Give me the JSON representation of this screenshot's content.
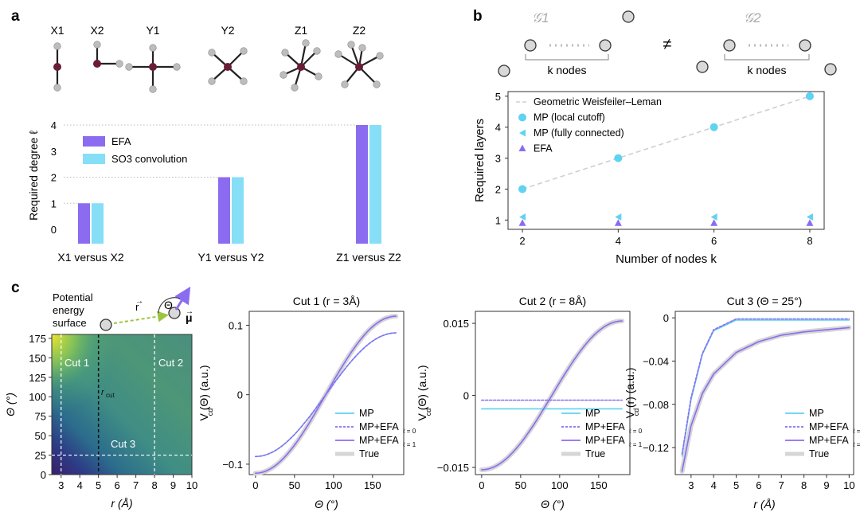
{
  "panel_labels": {
    "a": "a",
    "b": "b",
    "c": "c"
  },
  "colors": {
    "efa": "#8b6cf0",
    "so3": "#86def7",
    "mp": "#5fd3f1",
    "wl": "#cfcfcf",
    "true": "#d6d6d6",
    "node_center": "#6b1d35",
    "node_outer": "#bdbdbd"
  },
  "panel_a": {
    "molecules": [
      {
        "label": "X1",
        "shape": "X1"
      },
      {
        "label": "X2",
        "shape": "X2"
      },
      {
        "label": "Y1",
        "shape": "Y1"
      },
      {
        "label": "Y2",
        "shape": "Y2"
      },
      {
        "label": "Z1",
        "shape": "Z1"
      },
      {
        "label": "Z2",
        "shape": "Z2"
      }
    ]
  },
  "panel_b_schematic": {
    "graph1": "𝒢1",
    "graph2": "𝒢2",
    "neq": "≠",
    "k_nodes": "k nodes"
  },
  "panel_c_schematic": {
    "potential_label": [
      "Potential",
      "energy",
      "surface"
    ],
    "r_vec": "r",
    "mu_vec": "μ",
    "theta_sym": "Θ"
  },
  "chart_data": [
    {
      "id": "a",
      "type": "bar",
      "ylabel": "Required degree ℓ",
      "ylim": [
        0,
        4
      ],
      "yticks": [
        "0",
        "1",
        "2",
        "3",
        "4"
      ],
      "categories": [
        "X1 versus X2",
        "Y1 versus Y2",
        "Z1 versus Z2"
      ],
      "series": [
        {
          "name": "EFA",
          "values": [
            1,
            2,
            4
          ]
        },
        {
          "name": "SO3 convolution",
          "values": [
            1,
            2,
            4
          ]
        }
      ],
      "legend": "top-left"
    },
    {
      "id": "b",
      "type": "scatter",
      "xlabel": "Number of nodes k",
      "ylabel": "Required layers",
      "xlim": [
        1.7,
        8.3
      ],
      "ylim": [
        0.7,
        5.15
      ],
      "xticks": [
        "2",
        "4",
        "6",
        "8"
      ],
      "yticks": [
        "1",
        "2",
        "3",
        "4",
        "5"
      ],
      "x": [
        2,
        4,
        6,
        8
      ],
      "series": [
        {
          "name": "Geometric Weisfeiler–Leman",
          "values": [
            2,
            3,
            4,
            5
          ]
        },
        {
          "name": "MP (local cutoff)",
          "values": [
            2,
            3,
            4,
            5
          ]
        },
        {
          "name": "MP (fully connected)",
          "values": [
            1.1,
            1.1,
            1.1,
            1.1
          ]
        },
        {
          "name": "EFA",
          "values": [
            0.9,
            0.9,
            0.9,
            0.9
          ]
        }
      ],
      "legend": "top-left"
    },
    {
      "id": "c_heatmap",
      "type": "heatmap",
      "xlabel": "r (Å)",
      "ylabel": "Θ (°)",
      "xlim": [
        2.5,
        10
      ],
      "ylim": [
        0,
        180
      ],
      "xticks": [
        "3",
        "4",
        "5",
        "6",
        "7",
        "8",
        "9",
        "10"
      ],
      "yticks": [
        "0",
        "25",
        "50",
        "75",
        "100",
        "125",
        "150",
        "175"
      ],
      "cuts": [
        "Cut 1",
        "Cut 2",
        "Cut 3"
      ],
      "rcut_label": "r",
      "rcut_sub": "cut",
      "rcut": 5,
      "cut_lines": {
        "r": [
          3,
          8
        ],
        "theta": 25
      }
    },
    {
      "id": "c1",
      "type": "line",
      "title": "Cut 1 (r = 3Å)",
      "xlabel": "Θ (°)",
      "ylabel": "V (Θ) (a.u.)",
      "ysub": "cd",
      "xlim": [
        -8,
        190
      ],
      "ylim": [
        -0.115,
        0.12
      ],
      "xticks": [
        "0",
        "50",
        "100",
        "150"
      ],
      "yticks": [
        "0.1",
        "0",
        "−0.1"
      ],
      "x": [
        0,
        30,
        60,
        90,
        120,
        150,
        180
      ],
      "series": [
        {
          "name": "True",
          "values": [
            -0.113,
            -0.098,
            -0.057,
            0.0,
            0.057,
            0.098,
            0.113
          ]
        },
        {
          "name": "MP",
          "values": [
            -0.089,
            -0.077,
            -0.045,
            0.0,
            0.045,
            0.077,
            0.089
          ]
        },
        {
          "name": "MP+EFA",
          "sub": "ℓ = 0",
          "values": [
            -0.089,
            -0.077,
            -0.045,
            0.0,
            0.045,
            0.077,
            0.089
          ]
        },
        {
          "name": "MP+EFA",
          "sub": "ℓ = 1",
          "values": [
            -0.113,
            -0.098,
            -0.057,
            0.0,
            0.057,
            0.098,
            0.113
          ]
        }
      ],
      "legend": "bottom-right"
    },
    {
      "id": "c2",
      "type": "line",
      "title": "Cut 2 (r = 8Å)",
      "xlabel": "Θ (°)",
      "ylabel": "V (Θ) (a.u.)",
      "ysub": "cd",
      "xlim": [
        -8,
        190
      ],
      "ylim": [
        -0.0165,
        0.0175
      ],
      "xticks": [
        "0",
        "50",
        "100",
        "150"
      ],
      "yticks": [
        "0.015",
        "0",
        "−0.015"
      ],
      "x": [
        0,
        30,
        60,
        90,
        120,
        150,
        180
      ],
      "series": [
        {
          "name": "True",
          "values": [
            -0.0155,
            -0.0134,
            -0.0078,
            0.0,
            0.0078,
            0.0134,
            0.0155
          ]
        },
        {
          "name": "MP",
          "values": [
            -0.0028,
            -0.0028,
            -0.0028,
            -0.0028,
            -0.0028,
            -0.0028,
            -0.0028
          ]
        },
        {
          "name": "MP+EFA",
          "sub": "ℓ = 0",
          "values": [
            -0.001,
            -0.001,
            -0.001,
            -0.001,
            -0.001,
            -0.001,
            -0.001
          ]
        },
        {
          "name": "MP+EFA",
          "sub": "ℓ = 1",
          "values": [
            -0.0155,
            -0.0134,
            -0.0078,
            0.0,
            0.0078,
            0.0134,
            0.0155
          ]
        }
      ],
      "legend": "bottom-right"
    },
    {
      "id": "c3",
      "type": "line",
      "title": "Cut 3 (Θ = 25°)",
      "xlabel": "r (Å)",
      "ylabel": "V (r) (a.u.)",
      "ysub": "cd",
      "xlim": [
        2.3,
        10.2
      ],
      "ylim": [
        -0.145,
        0.006
      ],
      "xticks": [
        "3",
        "4",
        "5",
        "6",
        "7",
        "8",
        "9",
        "10"
      ],
      "yticks": [
        "0",
        "−0.04",
        "−0.08",
        "−0.12"
      ],
      "x": [
        2.6,
        3,
        3.5,
        4,
        5,
        6,
        7,
        8,
        9,
        10
      ],
      "series": [
        {
          "name": "True",
          "values": [
            -0.142,
            -0.1,
            -0.07,
            -0.052,
            -0.032,
            -0.022,
            -0.016,
            -0.013,
            -0.011,
            -0.009
          ]
        },
        {
          "name": "MP",
          "values": [
            -0.128,
            -0.076,
            -0.034,
            -0.012,
            -0.002,
            -0.002,
            -0.002,
            -0.002,
            -0.002,
            -0.002
          ]
        },
        {
          "name": "MP+EFA",
          "sub": "ℓ = 0",
          "values": [
            -0.126,
            -0.074,
            -0.033,
            -0.011,
            -0.001,
            -0.001,
            -0.001,
            -0.001,
            -0.001,
            -0.001
          ]
        },
        {
          "name": "MP+EFA",
          "sub": "ℓ = 1",
          "values": [
            -0.142,
            -0.1,
            -0.07,
            -0.052,
            -0.032,
            -0.022,
            -0.016,
            -0.013,
            -0.011,
            -0.009
          ]
        }
      ],
      "legend": "bottom-right"
    }
  ]
}
